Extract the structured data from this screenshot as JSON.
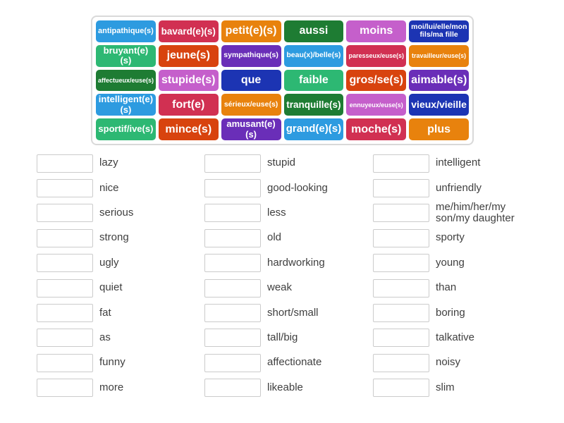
{
  "word_bank": {
    "tiles": [
      {
        "label": "antipathique(s)",
        "color": "#2D9BE0"
      },
      {
        "label": "bavard(e)(s)",
        "color": "#D13052"
      },
      {
        "label": "petit(e)(s)",
        "color": "#E8820D"
      },
      {
        "label": "aussi",
        "color": "#1E7C33"
      },
      {
        "label": "moins",
        "color": "#C55FCB"
      },
      {
        "label": "moi/lui/elle/mon fils/ma fille",
        "color": "#1C34B3"
      },
      {
        "label": "bruyant(e)(s)",
        "color": "#2DB873"
      },
      {
        "label": "jeune(s)",
        "color": "#D8430E"
      },
      {
        "label": "sympathique(s)",
        "color": "#6A2EB8"
      },
      {
        "label": "beau(x)/belle(s)",
        "color": "#2D9BE0"
      },
      {
        "label": "paresseux/euse(s)",
        "color": "#D13052"
      },
      {
        "label": "travailleur/euse(s)",
        "color": "#E8820D"
      },
      {
        "label": "affectueux/euse(s)",
        "color": "#1E7C33"
      },
      {
        "label": "stupide(s)",
        "color": "#C55FCB"
      },
      {
        "label": "que",
        "color": "#1C34B3"
      },
      {
        "label": "faible",
        "color": "#2DB873"
      },
      {
        "label": "gros/se(s)",
        "color": "#D8430E"
      },
      {
        "label": "aimable(s)",
        "color": "#6A2EB8"
      },
      {
        "label": "intelligent(e)(s)",
        "color": "#2D9BE0"
      },
      {
        "label": "fort(e)",
        "color": "#D13052"
      },
      {
        "label": "sérieux/euse(s)",
        "color": "#E8820D"
      },
      {
        "label": "tranquille(s)",
        "color": "#1E7C33"
      },
      {
        "label": "ennuyeux/euse(s)",
        "color": "#C55FCB"
      },
      {
        "label": "vieux/vieille",
        "color": "#1C34B3"
      },
      {
        "label": "sportif/ive(s)",
        "color": "#2DB873"
      },
      {
        "label": "mince(s)",
        "color": "#D8430E"
      },
      {
        "label": "amusant(e)(s)",
        "color": "#6A2EB8"
      },
      {
        "label": "grand(e)(s)",
        "color": "#2D9BE0"
      },
      {
        "label": "moche(s)",
        "color": "#D13052"
      },
      {
        "label": "plus",
        "color": "#E8820D"
      }
    ]
  },
  "match_list": {
    "columns": [
      {
        "items": [
          "lazy",
          "nice",
          "serious",
          "strong",
          "ugly",
          "quiet",
          "fat",
          "as",
          "funny",
          "more"
        ]
      },
      {
        "items": [
          "stupid",
          "good-looking",
          "less",
          "old",
          "hardworking",
          "weak",
          "short/small",
          "tall/big",
          "affectionate",
          "likeable"
        ]
      },
      {
        "items": [
          "intelligent",
          "unfriendly",
          "me/him/her/my son/my daughter",
          "sporty",
          "young",
          "than",
          "boring",
          "talkative",
          "noisy",
          "slim"
        ]
      }
    ]
  }
}
